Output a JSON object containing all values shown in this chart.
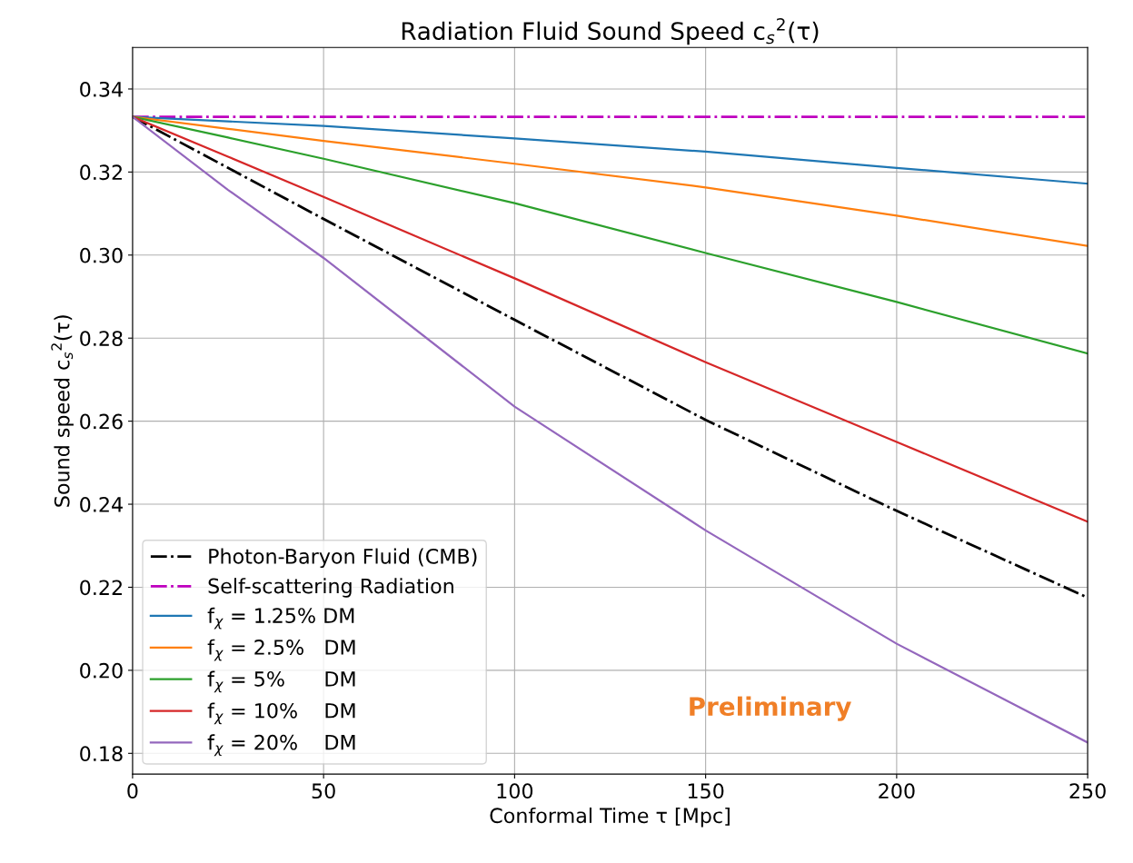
{
  "chart_data": {
    "type": "line",
    "title": "Radiation Fluid Sound Speed c$_{s}$$^{2}$(τ)",
    "xlabel": "Conformal Time τ [Mpc]",
    "ylabel": "Sound speed c$_{s}$$^{2}$(τ)",
    "x": [
      0,
      25,
      50,
      100,
      150,
      200,
      250
    ],
    "series": [
      {
        "name": "Photon-Baryon Fluid (CMB)",
        "color": "#000000",
        "line_style": "dashdot",
        "values": [
          0.3333,
          0.321,
          0.3087,
          0.2844,
          0.2603,
          0.2384,
          0.2175
        ]
      },
      {
        "name": "Self-scattering Radiation",
        "color": "#bf00bf",
        "line_style": "dashdot",
        "values": [
          0.3333,
          0.3333,
          0.3333,
          0.3333,
          0.3333,
          0.3333,
          0.3333
        ]
      },
      {
        "name": "f$_{χ}$ = 1.25% DM",
        "color": "#1f77b4",
        "line_style": "solid",
        "values": [
          0.3333,
          0.3322,
          0.3311,
          0.3281,
          0.3249,
          0.321,
          0.3172
        ]
      },
      {
        "name": "f$_{χ}$ = 2.5%   DM",
        "color": "#ff7f0e",
        "line_style": "solid",
        "values": [
          0.3333,
          0.3304,
          0.3275,
          0.322,
          0.3163,
          0.3095,
          0.3022
        ]
      },
      {
        "name": "f$_{χ}$ = 5%      DM",
        "color": "#2ca02c",
        "line_style": "solid",
        "values": [
          0.3333,
          0.3283,
          0.3232,
          0.3125,
          0.3005,
          0.2887,
          0.2763
        ]
      },
      {
        "name": "f$_{χ}$ = 10%    DM",
        "color": "#d62728",
        "line_style": "solid",
        "values": [
          0.3333,
          0.3237,
          0.314,
          0.2944,
          0.2742,
          0.255,
          0.2358
        ]
      },
      {
        "name": "f$_{χ}$ = 20%    DM",
        "color": "#9467bd",
        "line_style": "solid",
        "values": [
          0.3333,
          0.3157,
          0.2993,
          0.2635,
          0.2337,
          0.2064,
          0.1826
        ]
      }
    ],
    "xlim": [
      0,
      250
    ],
    "xticks": [
      0,
      50,
      100,
      150,
      200,
      250
    ],
    "ylim": [
      0.175,
      0.35
    ],
    "yticks": [
      {
        "value": 0.18,
        "label": "0.18"
      },
      {
        "value": 0.2,
        "label": "0.20"
      },
      {
        "value": 0.22,
        "label": "0.22"
      },
      {
        "value": 0.24,
        "label": "0.24"
      },
      {
        "value": 0.26,
        "label": "0.26"
      },
      {
        "value": 0.28,
        "label": "0.28"
      },
      {
        "value": 0.3,
        "label": "0.30"
      },
      {
        "value": 0.32,
        "label": "0.32"
      },
      {
        "value": 0.34,
        "label": "0.34"
      }
    ],
    "grid": true,
    "legend": "bottom left",
    "annotations": [
      "Preliminary"
    ]
  }
}
